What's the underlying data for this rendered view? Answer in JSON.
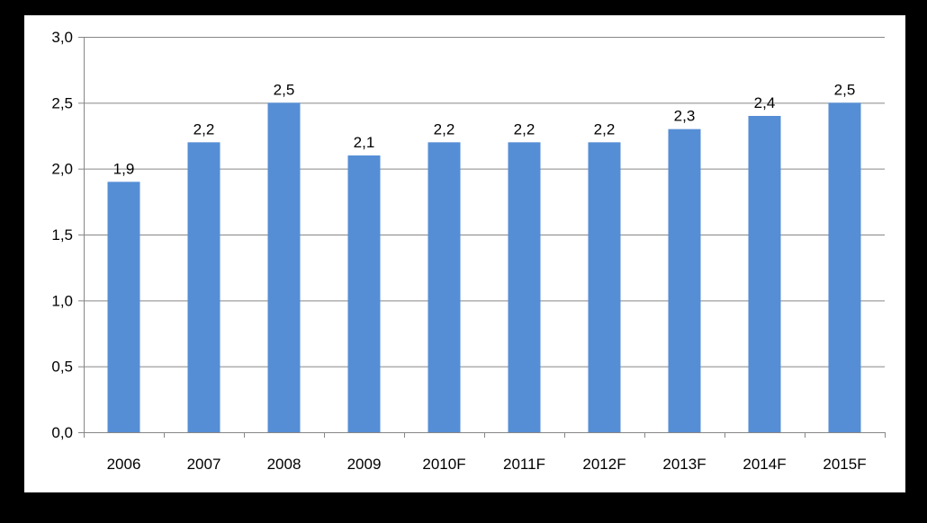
{
  "chart_data": {
    "type": "bar",
    "categories": [
      "2006",
      "2007",
      "2008",
      "2009",
      "2010F",
      "2011F",
      "2012F",
      "2013F",
      "2014F",
      "2015F"
    ],
    "values": [
      1.9,
      2.2,
      2.5,
      2.1,
      2.2,
      2.2,
      2.2,
      2.3,
      2.4,
      2.5
    ],
    "data_labels": [
      "1,9",
      "2,2",
      "2,5",
      "2,1",
      "2,2",
      "2,2",
      "2,2",
      "2,3",
      "2,4",
      "2,5"
    ],
    "y_ticks": [
      0,
      0.5,
      1.0,
      1.5,
      2.0,
      2.5,
      3.0
    ],
    "y_tick_labels": [
      "0,0",
      "0,5",
      "1,0",
      "1,5",
      "2,0",
      "2,5",
      "3,0"
    ],
    "ylim": [
      0,
      3.0
    ],
    "grid": true,
    "legend": "none",
    "colors": {
      "bar": "#558ED5",
      "grid": "#868686",
      "axis": "#868686",
      "background": "#ffffff",
      "frame": "#000000"
    }
  }
}
